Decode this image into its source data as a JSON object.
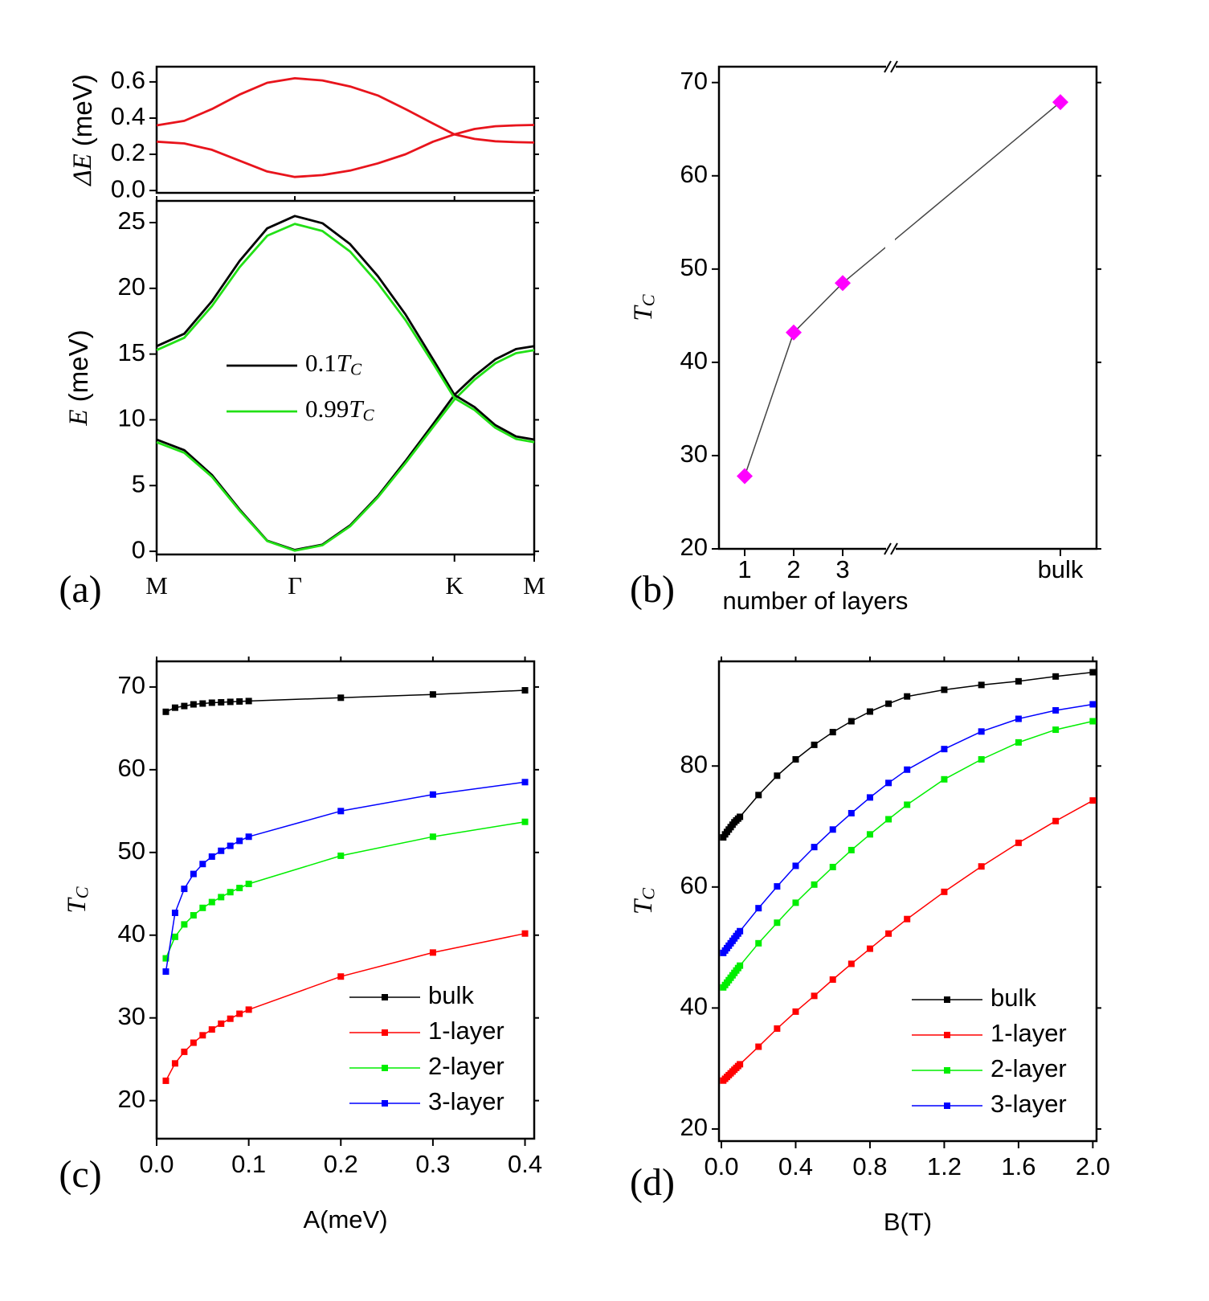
{
  "chart_data": [
    {
      "type": "line",
      "ylabel": "ΔE (meV)",
      "x": [
        0,
        0.2,
        0.4,
        0.6,
        0.8,
        1.0,
        1.2,
        1.4,
        1.6,
        1.8,
        2.0,
        2.155,
        2.3,
        2.45,
        2.6,
        2.732
      ],
      "xlim": [
        0,
        2.732
      ],
      "ylim": [
        -0.013,
        0.684
      ],
      "yticks": [
        {
          "value": 0,
          "label": "0.0"
        },
        0.2,
        0.4,
        0.6
      ],
      "series": [
        {
          "color": "#e8141c",
          "values": [
            0.36,
            0.385,
            0.45,
            0.53,
            0.595,
            0.62,
            0.608,
            0.575,
            0.525,
            0.45,
            0.37,
            0.31,
            0.285,
            0.272,
            0.267,
            0.265
          ]
        },
        {
          "color": "#e8141c",
          "values": [
            0.27,
            0.26,
            0.225,
            0.165,
            0.105,
            0.075,
            0.085,
            0.11,
            0.15,
            0.2,
            0.27,
            0.31,
            0.34,
            0.355,
            0.36,
            0.362
          ]
        }
      ]
    },
    {
      "type": "line",
      "panel_label": "(a)",
      "ylabel": "E (meV)",
      "x": [
        0,
        0.2,
        0.4,
        0.6,
        0.8,
        1.0,
        1.2,
        1.4,
        1.6,
        1.8,
        2.0,
        2.155,
        2.3,
        2.45,
        2.6,
        2.732
      ],
      "xlim": [
        0,
        2.732
      ],
      "ylim": [
        -0.24,
        26.65
      ],
      "xticks": [
        {
          "value": 0,
          "label": "M"
        },
        {
          "value": 1,
          "label": "Γ"
        },
        {
          "value": 2.155,
          "label": "K"
        },
        {
          "value": 2.732,
          "label": "M"
        }
      ],
      "yticks": [
        0,
        5,
        10,
        15,
        20,
        25
      ],
      "legend": "center",
      "series": [
        {
          "name": "0.1TC",
          "color": "#000000",
          "values": [
            8.5,
            7.69,
            5.81,
            3.19,
            0.81,
            0.1,
            0.51,
            1.97,
            4.19,
            6.86,
            9.67,
            11.9,
            13.34,
            14.59,
            15.38,
            15.6
          ]
        },
        {
          "name": "0.99TC",
          "color": "#22e016",
          "values": [
            8.3,
            7.5,
            5.67,
            3.1,
            0.78,
            0.05,
            0.46,
            1.9,
            4.1,
            6.7,
            9.45,
            11.55,
            13.05,
            14.3,
            15.07,
            15.3
          ]
        },
        {
          "color": "#000000",
          "values": [
            15.6,
            16.55,
            19.02,
            22.08,
            24.56,
            25.5,
            24.95,
            23.36,
            20.93,
            18.02,
            14.6,
            11.9,
            10.97,
            9.6,
            8.74,
            8.5
          ]
        },
        {
          "color": "#22e016",
          "values": [
            15.3,
            16.24,
            18.65,
            21.6,
            24.0,
            24.9,
            24.36,
            22.8,
            20.4,
            17.6,
            14.3,
            11.65,
            10.75,
            9.4,
            8.55,
            8.3
          ]
        }
      ]
    },
    {
      "type": "line",
      "panel_label": "(b)",
      "ylabel": "TC",
      "xlabel": "number of layers",
      "categories": [
        "1",
        "2",
        "3",
        "bulk"
      ],
      "axis_break": true,
      "values": [
        27.8,
        43.2,
        48.5,
        67.9
      ],
      "color": "#ff00ff",
      "line_color": "#444444",
      "marker": "diamond",
      "ylim": [
        20,
        71.7
      ],
      "yticks": [
        20,
        30,
        40,
        50,
        60,
        70
      ]
    },
    {
      "type": "line",
      "panel_label": "(c)",
      "ylabel": "TC",
      "xlabel": "A(meV)",
      "x": [
        0.01,
        0.02,
        0.03,
        0.04,
        0.05,
        0.06,
        0.07,
        0.08,
        0.09,
        0.1,
        0.2,
        0.3,
        0.4
      ],
      "xlim": [
        0,
        0.41
      ],
      "ylim": [
        15.4,
        73.1
      ],
      "xticks": [
        {
          "value": 0,
          "label": "0.0"
        },
        0.1,
        0.2,
        0.3,
        0.4
      ],
      "yticks": [
        20,
        30,
        40,
        50,
        60,
        70
      ],
      "legend": "lower right",
      "marker": "square",
      "series": [
        {
          "name": "bulk",
          "color": "#000000",
          "values": [
            67.0,
            67.5,
            67.7,
            67.9,
            68.0,
            68.1,
            68.15,
            68.2,
            68.25,
            68.3,
            68.7,
            69.1,
            69.6
          ]
        },
        {
          "name": "1-layer",
          "color": "#ff0000",
          "values": [
            22.4,
            24.5,
            25.9,
            27.0,
            27.9,
            28.6,
            29.3,
            29.9,
            30.5,
            31.0,
            35.0,
            37.9,
            40.2
          ]
        },
        {
          "name": "2-layer",
          "color": "#00ee00",
          "values": [
            37.2,
            39.8,
            41.3,
            42.4,
            43.3,
            44.0,
            44.6,
            45.2,
            45.7,
            46.2,
            49.6,
            51.9,
            53.7
          ]
        },
        {
          "name": "3-layer",
          "color": "#0000ff",
          "values": [
            35.6,
            42.7,
            45.6,
            47.4,
            48.6,
            49.5,
            50.2,
            50.8,
            51.4,
            51.9,
            55.0,
            57.0,
            58.5
          ]
        }
      ]
    },
    {
      "type": "line",
      "panel_label": "(d)",
      "ylabel": "TC",
      "xlabel": "B(T)",
      "x": [
        0.01,
        0.02,
        0.03,
        0.04,
        0.05,
        0.06,
        0.07,
        0.08,
        0.09,
        0.1,
        0.2,
        0.3,
        0.4,
        0.5,
        0.6,
        0.7,
        0.8,
        0.9,
        1.0,
        1.2,
        1.4,
        1.6,
        1.8,
        2.0
      ],
      "xlim": [
        -0.013,
        2.02
      ],
      "ylim": [
        18.0,
        97.3
      ],
      "xticks": [
        {
          "value": 0,
          "label": "0.0"
        },
        0.4,
        0.8,
        1.2,
        1.6,
        {
          "value": 2,
          "label": "2.0"
        }
      ],
      "yticks": [
        20,
        40,
        60,
        80
      ],
      "legend": "lower right",
      "marker": "square",
      "series": [
        {
          "name": "bulk",
          "color": "#000000",
          "values": [
            68.2,
            68.7,
            69.1,
            69.5,
            69.9,
            70.3,
            70.7,
            71.0,
            71.3,
            71.6,
            75.2,
            78.4,
            81.1,
            83.5,
            85.6,
            87.4,
            89.0,
            90.3,
            91.5,
            92.6,
            93.4,
            94.0,
            94.8,
            95.5
          ]
        },
        {
          "name": "1-layer",
          "color": "#ff0000",
          "values": [
            28.0,
            28.3,
            28.6,
            28.9,
            29.2,
            29.5,
            29.8,
            30.1,
            30.4,
            30.7,
            33.6,
            36.6,
            39.4,
            42.0,
            44.7,
            47.3,
            49.8,
            52.3,
            54.7,
            59.2,
            63.4,
            67.3,
            70.9,
            74.3
          ]
        },
        {
          "name": "2-layer",
          "color": "#00ee00",
          "values": [
            43.4,
            43.8,
            44.2,
            44.6,
            45.0,
            45.4,
            45.8,
            46.2,
            46.6,
            47.0,
            50.7,
            54.1,
            57.4,
            60.4,
            63.3,
            66.1,
            68.7,
            71.2,
            73.6,
            77.8,
            81.1,
            83.9,
            86.0,
            87.4
          ]
        },
        {
          "name": "3-layer",
          "color": "#0000ff",
          "values": [
            49.1,
            49.5,
            49.9,
            50.3,
            50.7,
            51.1,
            51.5,
            51.9,
            52.3,
            52.7,
            56.5,
            60.1,
            63.5,
            66.6,
            69.5,
            72.2,
            74.8,
            77.2,
            79.4,
            82.8,
            85.7,
            87.8,
            89.2,
            90.2
          ]
        }
      ]
    }
  ]
}
